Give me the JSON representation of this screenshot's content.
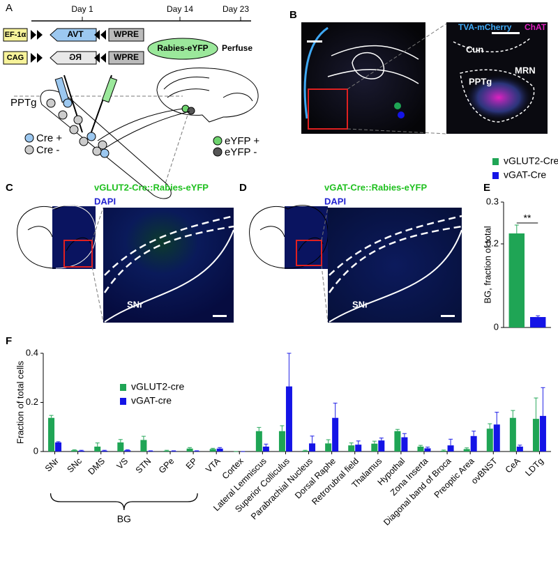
{
  "panels": {
    "A": {
      "label": "A",
      "days": [
        "Day 1",
        "Day 14",
        "Day 23"
      ],
      "constructs": [
        {
          "promoter": "EF-1α",
          "gene": "TVA",
          "wpre": "WPRE"
        },
        {
          "promoter": "CAG",
          "gene": "RG",
          "wpre": "WPRE"
        }
      ],
      "virus": "Rabies-eYFP",
      "perfuse": "Perfuse",
      "region": "PPTg",
      "legend": [
        "Cre +",
        "Cre -",
        "eYFP +",
        "eYFP -"
      ]
    },
    "B": {
      "label": "B",
      "stain1": "TVA-mCherry",
      "stain2": "ChAT",
      "regions": [
        "Cun",
        "MRN",
        "PPTg"
      ]
    },
    "C": {
      "label": "C",
      "title": "vGLUT2-Cre::Rabies-eYFP",
      "stain": "DAPI",
      "region": "SNr"
    },
    "D": {
      "label": "D",
      "title": "vGAT-Cre::Rabies-eYFP",
      "stain": "DAPI",
      "region": "SNr"
    },
    "E": {
      "label": "E"
    },
    "F": {
      "label": "F"
    }
  },
  "chart_data": [
    {
      "type": "bar",
      "ylabel": "BG, fraction of total",
      "categories": [
        null
      ],
      "series": [
        {
          "name": "vGLUT2-Cre",
          "color": "#1fa555",
          "values": [
            0.225
          ],
          "errors": [
            0.02
          ]
        },
        {
          "name": "vGAT-Cre",
          "color": "#1414e6",
          "values": [
            0.025
          ],
          "errors": [
            0.003
          ]
        }
      ],
      "ylim": [
        0,
        0.3
      ],
      "yticks": [
        0,
        0.2,
        0.3
      ],
      "annotation": "**",
      "legend": "top"
    },
    {
      "type": "bar",
      "ylabel": "Fraction of total cells",
      "group_label": "BG",
      "categories": [
        "SNr",
        "SNc",
        "DMS",
        "VS",
        "STN",
        "GPe",
        "EP",
        "VTA",
        "Cortex",
        "Lateral Lemniscus",
        "Superior Colliculus",
        "Parabrachial Nucleus",
        "Dorsal Raphe",
        "Retrorubral field",
        "Thalamus",
        "Hypothal",
        "Zona Inserta",
        "Diagonal band of Broca",
        "Preoptic Area",
        "ovBNST",
        "CeA",
        "LDTg"
      ],
      "series": [
        {
          "name": "vGLUT2-cre",
          "color": "#1fa555",
          "values": [
            0.137,
            0.005,
            0.02,
            0.037,
            0.047,
            0.003,
            0.012,
            0.01,
            0,
            0.083,
            0.083,
            0.003,
            0.033,
            0.025,
            0.032,
            0.083,
            0.02,
            0.003,
            0.01,
            0.093,
            0.137,
            0.133
          ],
          "errors": [
            0.01,
            0.002,
            0.015,
            0.012,
            0.015,
            0.002,
            0.004,
            0.003,
            0,
            0.015,
            0.022,
            0.002,
            0.015,
            0.01,
            0.01,
            0.007,
            0.005,
            0.003,
            0.005,
            0.02,
            0.03,
            0.085
          ]
        },
        {
          "name": "vGAT-cre",
          "color": "#1414e6",
          "values": [
            0.037,
            0.003,
            0.003,
            0.005,
            0.002,
            0.002,
            0.002,
            0.012,
            0,
            0.02,
            0.265,
            0.033,
            0.137,
            0.028,
            0.045,
            0.058,
            0.013,
            0.025,
            0.063,
            0.11,
            0.02,
            0.145
          ],
          "errors": [
            0.003,
            0.002,
            0.002,
            0.002,
            0.001,
            0.001,
            0.001,
            0.004,
            0,
            0.01,
            0.135,
            0.03,
            0.06,
            0.015,
            0.01,
            0.015,
            0.005,
            0.025,
            0.02,
            0.05,
            0.006,
            0.115
          ]
        }
      ],
      "ylim": [
        0,
        0.4
      ],
      "yticks": [
        0,
        0.2,
        0.4
      ],
      "legend": "upper-left"
    }
  ]
}
